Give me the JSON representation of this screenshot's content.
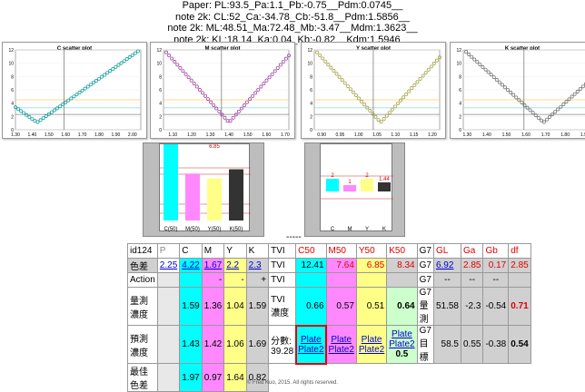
{
  "header": {
    "line1": "Paper: PL:93.5_Pa:1.1_Pb:-0.75__Pdm:0.0745__",
    "line2": "note 2k: CL:52_Ca:-34.78_Cb:-51.8__Pdm:1.5856__",
    "line3": "note 2k: ML:48.51_Ma:72.48_Mb:-3.47__Mdm:1.3623__",
    "line4": "note 2k: KL:18.14_Ka:0.04_Kb:-0.82__Kdm:1.5946__"
  },
  "plots": [
    {
      "title": "C scatter plot",
      "color": "#009999",
      "ticks": [
        "1.30",
        "1.40",
        "1.50",
        "1.60",
        "1.70",
        "1.80",
        "1.90",
        "2.00"
      ],
      "xmin": 1.3,
      "xmax": 2.05,
      "vline": 1.59,
      "vmin": 1.43,
      "sharp": 0.2
    },
    {
      "title": "M scatter plot",
      "color": "#993399",
      "ticks": [
        "1.10",
        "1.20",
        "1.30",
        "1.40",
        "1.50",
        "1.60",
        "1.70"
      ],
      "xmin": 1.05,
      "xmax": 1.72,
      "vline": 1.36,
      "vmin": 1.4,
      "sharp": 0.0
    },
    {
      "title": "Y scatter plot",
      "color": "#999933",
      "ticks": [
        "0.90",
        "0.95",
        "1.00",
        "1.05",
        "1.10",
        "1.15",
        "1.20"
      ],
      "xmin": 0.88,
      "xmax": 1.22,
      "vline": 1.04,
      "vmin": 1.06,
      "sharp": 0.0
    },
    {
      "title": "K scatter plot",
      "color": "#666666",
      "ticks": [
        "1.30",
        "1.40",
        "1.50",
        "1.60",
        "1.70",
        "1.80",
        "1.90"
      ],
      "xmin": 1.28,
      "xmax": 1.92,
      "vline": 1.59,
      "vmin": 1.69,
      "sharp": 0.0
    }
  ],
  "plot_yticks": [
    "0",
    "2",
    "4",
    "6",
    "8",
    "10",
    "12"
  ],
  "bars_left": {
    "labels": [
      "C(50)",
      "M(50)",
      "Y(50)",
      "K(50)"
    ],
    "values": [
      12.41,
      7.64,
      6.85,
      8.34
    ],
    "value_label": "6.85",
    "colors": [
      "#00ffff",
      "#ff88ff",
      "#ffff88",
      "#333333"
    ]
  },
  "bars_right": {
    "labels": [
      "C",
      "M",
      "Y",
      "K"
    ],
    "values": [
      2,
      1,
      2,
      1.44
    ],
    "value_labels": [
      "2",
      "1",
      "2",
      "1.44"
    ],
    "colors": [
      "#00ffff",
      "#ff88ff",
      "#ffff88",
      "#333333"
    ]
  },
  "separator": "-----",
  "table": {
    "header": [
      "id124",
      "P",
      "C",
      "M",
      "Y",
      "K",
      "TVI",
      "C50",
      "M50",
      "Y50",
      "K50",
      "G7",
      "GL",
      "Ga",
      "Gb",
      "df"
    ],
    "row_color": {
      "label": "色差",
      "P": "2.25",
      "C": "4.22",
      "M": "1.67",
      "Y": "2.2",
      "K": "2.3",
      "tvi": "TVI",
      "c50": "12.41",
      "m50": "7.64",
      "y50": "6.85",
      "k50": "8.34",
      "g7": "G7",
      "gl": "6.92",
      "ga": "2.85",
      "gb": "0.17",
      "df": "2.85"
    },
    "row_action": {
      "label": "Action",
      "C": "",
      "M": "-",
      "Y": "-",
      "K": "+",
      "tvi": "TVI",
      "c50": "",
      "m50": "",
      "y50": "",
      "k50": "",
      "g7": "G7",
      "gl": "--",
      "ga": "--",
      "gb": "--",
      "df": ""
    },
    "row_measured": {
      "label": "量測濃度",
      "C": "1.59",
      "M": "1.36",
      "Y": "1.04",
      "K": "1.59",
      "tvi": "TVI濃度",
      "c50": "0.66",
      "m50": "0.57",
      "y50": "0.51",
      "k50": "0.64",
      "g7": "G7量測",
      "gl": "51.58",
      "ga": "-2.3",
      "gb": "-0.54",
      "df": "0.71"
    },
    "row_predict": {
      "label": "預測濃度",
      "C": "1.43",
      "M": "1.42",
      "Y": "1.06",
      "K": "1.69",
      "tvi": "分數: 39.28",
      "g7": "G7目標",
      "gl": "58.5",
      "ga": "0.55",
      "gb": "-0.38",
      "df": "0.54",
      "k50val": "0.5"
    },
    "plate_link_1": "Plate",
    "plate_link_2": "Plate2",
    "row_best": {
      "label": "最佳色差",
      "C": "1.97",
      "M": "0.97",
      "Y": "1.64",
      "K": "0.82"
    }
  },
  "footer": "© Fred Kuo, 2015. All rights reserved."
}
